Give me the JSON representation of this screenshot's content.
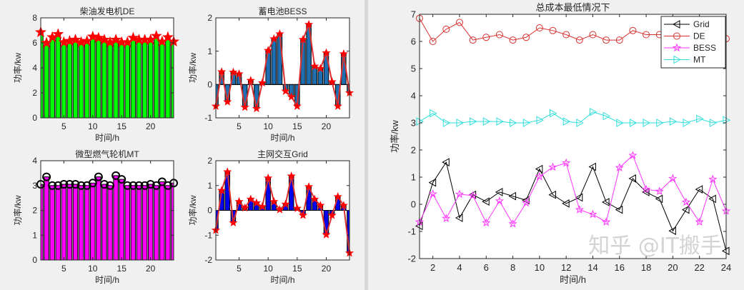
{
  "colors": {
    "de_bar": "#00ff00",
    "mt_bar": "#ff00ff",
    "bess_bar": "#1f6fb0",
    "grid_bar": "#0000ee",
    "marker_red": "#ff0000",
    "line_red": "#d93030",
    "bess_line": "#ff33ff",
    "mt_line": "#33dddd",
    "grid_line": "#000000"
  },
  "watermark": "知乎 @IT搬手",
  "chart_data": [
    {
      "id": "de",
      "type": "bar",
      "title": "柴油发电机DE",
      "xlabel": "时间/h",
      "ylabel": "功率/kw",
      "xlim": [
        1,
        24
      ],
      "ylim": [
        0,
        8
      ],
      "xticks": [
        5,
        10,
        15,
        20
      ],
      "yticks": [
        0,
        2,
        4,
        6,
        8
      ],
      "x": [
        1,
        2,
        3,
        4,
        5,
        6,
        7,
        8,
        9,
        10,
        11,
        12,
        13,
        14,
        15,
        16,
        17,
        18,
        19,
        20,
        21,
        22,
        23,
        24
      ],
      "values": [
        6.85,
        6.0,
        6.45,
        6.7,
        6.05,
        6.15,
        6.25,
        6.05,
        6.15,
        6.5,
        6.4,
        6.25,
        6.05,
        6.25,
        6.05,
        6.05,
        6.4,
        6.25,
        6.25,
        6.25,
        6.55,
        6.1,
        6.45,
        6.1
      ],
      "bar_color": "#00ff00",
      "marker": "star"
    },
    {
      "id": "bess",
      "type": "bar",
      "title": "蓄电池BESS",
      "xlabel": "时间/h",
      "ylabel": "功率/kw",
      "xlim": [
        1,
        24
      ],
      "ylim": [
        -1,
        2
      ],
      "xticks": [
        5,
        10,
        15,
        20
      ],
      "yticks": [
        -1,
        0,
        1,
        2
      ],
      "x": [
        1,
        2,
        3,
        4,
        5,
        6,
        7,
        8,
        9,
        10,
        11,
        12,
        13,
        14,
        15,
        16,
        17,
        18,
        19,
        20,
        21,
        22,
        23,
        24
      ],
      "values": [
        -0.65,
        0.38,
        -0.52,
        0.37,
        0.32,
        -0.68,
        0.12,
        -0.72,
        0.05,
        1.02,
        1.37,
        1.52,
        -0.2,
        -0.37,
        -0.65,
        1.35,
        1.8,
        0.55,
        0.48,
        0.95,
        0.08,
        -0.65,
        0.92,
        -0.25
      ],
      "bar_color": "#1f6fb0",
      "marker": "dot-line"
    },
    {
      "id": "mt",
      "type": "bar",
      "title": "微型燃气轮机MT",
      "xlabel": "时间/h",
      "ylabel": "功率/kw",
      "xlim": [
        1,
        24
      ],
      "ylim": [
        0,
        4
      ],
      "xticks": [
        5,
        10,
        15,
        20
      ],
      "yticks": [
        0,
        1,
        2,
        3,
        4
      ],
      "x": [
        1,
        2,
        3,
        4,
        5,
        6,
        7,
        8,
        9,
        10,
        11,
        12,
        13,
        14,
        15,
        16,
        17,
        18,
        19,
        20,
        21,
        22,
        23,
        24
      ],
      "values": [
        3.05,
        3.35,
        3.0,
        3.0,
        3.05,
        3.05,
        3.05,
        3.0,
        3.0,
        3.1,
        3.35,
        3.05,
        3.0,
        3.4,
        3.25,
        3.0,
        3.0,
        3.0,
        3.0,
        3.05,
        3.0,
        3.15,
        3.0,
        3.1
      ],
      "bar_color": "#ff00ff",
      "marker": "circle"
    },
    {
      "id": "grid",
      "type": "bar",
      "title": "主网交互Grid",
      "xlabel": "时间/h",
      "ylabel": "功率/kw",
      "xlim": [
        1,
        24
      ],
      "ylim": [
        -2,
        2
      ],
      "xticks": [
        5,
        10,
        15,
        20
      ],
      "yticks": [
        -2,
        -1,
        0,
        1,
        2
      ],
      "x": [
        1,
        2,
        3,
        4,
        5,
        6,
        7,
        8,
        9,
        10,
        11,
        12,
        13,
        14,
        15,
        16,
        17,
        18,
        19,
        20,
        21,
        22,
        23,
        24
      ],
      "values": [
        -0.8,
        0.8,
        1.55,
        -0.5,
        0.35,
        0.1,
        0.45,
        0.3,
        0.15,
        1.3,
        0.35,
        0.03,
        0.25,
        1.38,
        0.08,
        -0.2,
        0.95,
        0.45,
        0.2,
        -0.98,
        -0.2,
        0.55,
        0.2,
        -1.72
      ],
      "bar_color": "#0000ee",
      "marker": "dot-line"
    },
    {
      "id": "total",
      "type": "line",
      "title": "总成本最低情况下",
      "xlabel": "时间/h",
      "ylabel": "功率/kw",
      "xlim": [
        1,
        24
      ],
      "ylim": [
        -2,
        7
      ],
      "xticks": [
        2,
        4,
        6,
        8,
        10,
        12,
        14,
        16,
        18,
        20,
        22,
        24
      ],
      "yticks": [
        -2,
        -1,
        0,
        1,
        2,
        3,
        4,
        5,
        6,
        7
      ],
      "legend_position": "top-right",
      "x": [
        1,
        2,
        3,
        4,
        5,
        6,
        7,
        8,
        9,
        10,
        11,
        12,
        13,
        14,
        15,
        16,
        17,
        18,
        19,
        20,
        21,
        22,
        23,
        24
      ],
      "series": [
        {
          "name": "Grid",
          "color": "#000000",
          "marker": "triangle-left",
          "values": [
            -0.8,
            0.8,
            1.55,
            -0.5,
            0.35,
            0.1,
            0.45,
            0.3,
            0.15,
            1.3,
            0.35,
            0.03,
            0.25,
            1.38,
            0.08,
            -0.2,
            0.95,
            0.45,
            0.2,
            -0.98,
            -0.2,
            0.55,
            0.2,
            -1.72
          ]
        },
        {
          "name": "DE",
          "color": "#d93030",
          "marker": "circle",
          "values": [
            6.85,
            6.0,
            6.45,
            6.7,
            6.05,
            6.15,
            6.25,
            6.05,
            6.15,
            6.5,
            6.4,
            6.25,
            6.05,
            6.25,
            6.05,
            6.05,
            6.4,
            6.25,
            6.25,
            6.25,
            6.55,
            6.1,
            6.45,
            6.1
          ]
        },
        {
          "name": "BESS",
          "color": "#ff33ff",
          "marker": "star",
          "values": [
            -0.65,
            0.38,
            -0.52,
            0.37,
            0.32,
            -0.68,
            0.12,
            -0.72,
            0.05,
            1.02,
            1.37,
            1.52,
            -0.2,
            -0.37,
            -0.65,
            1.35,
            1.8,
            0.55,
            0.48,
            0.95,
            0.08,
            -0.65,
            0.92,
            -0.25
          ]
        },
        {
          "name": "MT",
          "color": "#33dddd",
          "marker": "triangle-right",
          "values": [
            3.05,
            3.35,
            3.0,
            3.0,
            3.05,
            3.05,
            3.05,
            3.0,
            3.0,
            3.1,
            3.35,
            3.05,
            3.0,
            3.4,
            3.25,
            3.0,
            3.0,
            3.0,
            3.0,
            3.05,
            3.0,
            3.15,
            3.0,
            3.1
          ]
        }
      ]
    }
  ]
}
